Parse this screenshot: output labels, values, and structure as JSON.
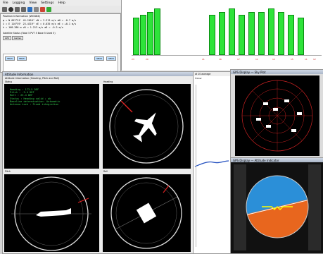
{
  "menu": [
    "File",
    "Logging",
    "View",
    "Settings",
    "Help"
  ],
  "position": {
    "title": "Position Information (WGS84)",
    "rows": [
      "φ  =  N  052°51' 45.2010\"    vN  =   3.313 m/s    σN  =  -0.7 m/s",
      "λ  =  E  110°59' 23.4319\"    vE  =   0.035 m/s    σE  =  +0.1 m/s",
      "h  =     108.280 m           vD  =   1.213 m/s    σD  =  -0.3 m/s"
    ],
    "sat_status": "Satellite Status (Total 5  PVT 5  Base 5  Used 5)",
    "tabs": [
      "GPS",
      "Galileo"
    ],
    "buttons": [
      "SBAS",
      "SBAS",
      "SBAS",
      "SBAS"
    ]
  },
  "attitude": {
    "title": "Attitude Information",
    "subtitle": "Attitude Information (Heading, Pitch and Roll)",
    "status_heading": "Status",
    "text_rows": [
      "Heading         : 173.5 DEF",
      "Pitch            : -3.4 DEF",
      "Roll             : 23.4 DEF",
      "",
      "Status           : Heading  valid ; ok",
      "Baseline determination: Automatic",
      "Antenna Lock     : Fixed integration"
    ],
    "dial_labels": [
      "Heading",
      "Pitch",
      "Roll"
    ]
  },
  "chart": {
    "bars": [
      12,
      13,
      14,
      15,
      13,
      14,
      15,
      13,
      14,
      14,
      15,
      14,
      13,
      12
    ]
  },
  "bottom_labels": [
    "23",
    "20",
    "21",
    "16",
    "17",
    "11",
    "12",
    "15",
    "11",
    "12"
  ],
  "skyplot": {
    "title": "GPS Display",
    "sub": "Sky Plot"
  },
  "hsi": {
    "title": "GPS Display",
    "sub": "Attitude Indicator"
  },
  "mid_window": {
    "title": "at 10 average",
    "check": "Follow"
  }
}
